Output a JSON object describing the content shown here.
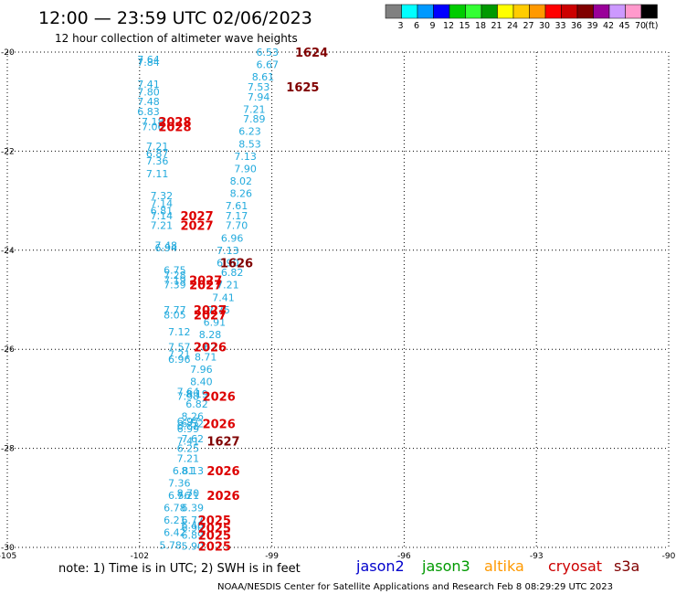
{
  "header": {
    "title": "12:00 — 23:59 UTC 02/06/2023",
    "subtitle": "12 hour collection of altimeter wave heights"
  },
  "legend": {
    "unit": "(ft)",
    "bins": [
      {
        "label": "3",
        "color": "#808080"
      },
      {
        "label": "6",
        "color": "#00ffff"
      },
      {
        "label": "9",
        "color": "#0099ff"
      },
      {
        "label": "12",
        "color": "#0000ff"
      },
      {
        "label": "15",
        "color": "#00cc00"
      },
      {
        "label": "18",
        "color": "#33ff33"
      },
      {
        "label": "21",
        "color": "#009900"
      },
      {
        "label": "24",
        "color": "#ffff00"
      },
      {
        "label": "27",
        "color": "#ffcc00"
      },
      {
        "label": "30",
        "color": "#ff9900"
      },
      {
        "label": "33",
        "color": "#ff0000"
      },
      {
        "label": "36",
        "color": "#cc0000"
      },
      {
        "label": "39",
        "color": "#800000"
      },
      {
        "label": "42",
        "color": "#990099"
      },
      {
        "label": "45",
        "color": "#cc99ff"
      },
      {
        "label": "70",
        "color": "#ff99cc"
      },
      {
        "label": "",
        "color": "#000000"
      }
    ]
  },
  "footer": {
    "note": "note:  1) Time is in UTC;  2) SWH is in feet",
    "satellites": [
      {
        "name": "jason2",
        "color": "#0000cc"
      },
      {
        "name": "jason3",
        "color": "#009900"
      },
      {
        "name": "altika",
        "color": "#ff9900"
      },
      {
        "name": "cryosat",
        "color": "#cc0000"
      },
      {
        "name": "s3a",
        "color": "#800000"
      }
    ],
    "credit": "NOAA/NESDIS Center for Satellite Applications and Research    Feb  8 08:29:29 UTC 2023"
  },
  "chart_data": {
    "type": "scatter",
    "xlim": [
      -105,
      -90
    ],
    "ylim": [
      -30,
      -20
    ],
    "xticks": [
      -105,
      -102,
      -99,
      -96,
      -93,
      -90
    ],
    "yticks": [
      -20,
      -22,
      -24,
      -26,
      -28,
      -30
    ],
    "grid": true,
    "swh_color": "#22aadd",
    "swh_points": [
      {
        "lon": -99.1,
        "lat": -20.0,
        "v": "6.53"
      },
      {
        "lon": -101.8,
        "lat": -20.15,
        "v": "7.64"
      },
      {
        "lon": -101.8,
        "lat": -20.2,
        "v": "7.84"
      },
      {
        "lon": -99.1,
        "lat": -20.25,
        "v": "6.67"
      },
      {
        "lon": -99.2,
        "lat": -20.5,
        "v": "8.61"
      },
      {
        "lon": -101.8,
        "lat": -20.65,
        "v": "7.41"
      },
      {
        "lon": -99.3,
        "lat": -20.7,
        "v": "7.53"
      },
      {
        "lon": -101.8,
        "lat": -20.8,
        "v": "7.80"
      },
      {
        "lon": -99.3,
        "lat": -20.9,
        "v": "7.94"
      },
      {
        "lon": -101.8,
        "lat": -21.0,
        "v": "7.48"
      },
      {
        "lon": -99.4,
        "lat": -21.15,
        "v": "7.21"
      },
      {
        "lon": -101.8,
        "lat": -21.2,
        "v": "6.83"
      },
      {
        "lon": -99.4,
        "lat": -21.35,
        "v": "7.89"
      },
      {
        "lon": -101.7,
        "lat": -21.4,
        "v": "7.18"
      },
      {
        "lon": -101.7,
        "lat": -21.5,
        "v": "7.06"
      },
      {
        "lon": -99.5,
        "lat": -21.6,
        "v": "6.23"
      },
      {
        "lon": -99.5,
        "lat": -21.85,
        "v": "8.53"
      },
      {
        "lon": -101.6,
        "lat": -21.9,
        "v": "7.21"
      },
      {
        "lon": -101.6,
        "lat": -22.05,
        "v": "6.87"
      },
      {
        "lon": -99.6,
        "lat": -22.1,
        "v": "7.13"
      },
      {
        "lon": -101.6,
        "lat": -22.2,
        "v": "7.36"
      },
      {
        "lon": -99.6,
        "lat": -22.35,
        "v": "7.90"
      },
      {
        "lon": -101.6,
        "lat": -22.45,
        "v": "7.11"
      },
      {
        "lon": -99.7,
        "lat": -22.6,
        "v": "8.02"
      },
      {
        "lon": -99.7,
        "lat": -22.85,
        "v": "8.26"
      },
      {
        "lon": -101.5,
        "lat": -22.9,
        "v": "7.32"
      },
      {
        "lon": -101.5,
        "lat": -23.05,
        "v": "7.14"
      },
      {
        "lon": -99.8,
        "lat": -23.1,
        "v": "7.61"
      },
      {
        "lon": -101.5,
        "lat": -23.2,
        "v": "6.81"
      },
      {
        "lon": -101.5,
        "lat": -23.3,
        "v": "7.14"
      },
      {
        "lon": -99.8,
        "lat": -23.3,
        "v": "7.17"
      },
      {
        "lon": -101.5,
        "lat": -23.5,
        "v": "7.21"
      },
      {
        "lon": -99.8,
        "lat": -23.5,
        "v": "7.70"
      },
      {
        "lon": -99.9,
        "lat": -23.75,
        "v": "6.96"
      },
      {
        "lon": -101.4,
        "lat": -23.9,
        "v": "7.48"
      },
      {
        "lon": -101.4,
        "lat": -23.95,
        "v": "6.94"
      },
      {
        "lon": -100.0,
        "lat": -24.0,
        "v": "7.13"
      },
      {
        "lon": -100.0,
        "lat": -24.25,
        "v": "6.90"
      },
      {
        "lon": -101.2,
        "lat": -24.4,
        "v": "6.75"
      },
      {
        "lon": -99.9,
        "lat": -24.45,
        "v": "6.82"
      },
      {
        "lon": -101.2,
        "lat": -24.5,
        "v": "7.28"
      },
      {
        "lon": -101.2,
        "lat": -24.6,
        "v": "7.19"
      },
      {
        "lon": -100.0,
        "lat": -24.7,
        "v": "7.21"
      },
      {
        "lon": -101.2,
        "lat": -24.7,
        "v": "7.39"
      },
      {
        "lon": -100.1,
        "lat": -24.95,
        "v": "7.41"
      },
      {
        "lon": -101.2,
        "lat": -25.2,
        "v": "7.77"
      },
      {
        "lon": -101.2,
        "lat": -25.3,
        "v": "8.05"
      },
      {
        "lon": -100.2,
        "lat": -25.2,
        "v": "7.75"
      },
      {
        "lon": -100.3,
        "lat": -25.45,
        "v": "6.91"
      },
      {
        "lon": -101.1,
        "lat": -25.65,
        "v": "7.12"
      },
      {
        "lon": -100.4,
        "lat": -25.7,
        "v": "8.28"
      },
      {
        "lon": -101.1,
        "lat": -25.95,
        "v": "7.57"
      },
      {
        "lon": -100.5,
        "lat": -25.95,
        "v": "7.62"
      },
      {
        "lon": -101.1,
        "lat": -26.1,
        "v": "7.21"
      },
      {
        "lon": -101.1,
        "lat": -26.2,
        "v": "6.96"
      },
      {
        "lon": -100.5,
        "lat": -26.15,
        "v": "8.71"
      },
      {
        "lon": -100.6,
        "lat": -26.4,
        "v": "7.96"
      },
      {
        "lon": -100.6,
        "lat": -26.65,
        "v": "8.40"
      },
      {
        "lon": -100.9,
        "lat": -26.85,
        "v": "7.64"
      },
      {
        "lon": -100.9,
        "lat": -26.95,
        "v": "7.98"
      },
      {
        "lon": -100.7,
        "lat": -26.9,
        "v": "8.19"
      },
      {
        "lon": -100.7,
        "lat": -27.1,
        "v": "6.82"
      },
      {
        "lon": -100.8,
        "lat": -27.35,
        "v": "8.26"
      },
      {
        "lon": -100.9,
        "lat": -27.45,
        "v": "6.97"
      },
      {
        "lon": -100.9,
        "lat": -27.55,
        "v": "6.82"
      },
      {
        "lon": -100.8,
        "lat": -27.5,
        "v": "6.52"
      },
      {
        "lon": -100.9,
        "lat": -27.6,
        "v": "6.99"
      },
      {
        "lon": -100.8,
        "lat": -27.8,
        "v": "7.62"
      },
      {
        "lon": -100.9,
        "lat": -27.85,
        "v": "7.41"
      },
      {
        "lon": -100.9,
        "lat": -28.0,
        "v": "6.25"
      },
      {
        "lon": -100.9,
        "lat": -28.2,
        "v": "7.21"
      },
      {
        "lon": -101.0,
        "lat": -28.45,
        "v": "6.81"
      },
      {
        "lon": -100.8,
        "lat": -28.45,
        "v": "8.13"
      },
      {
        "lon": -101.1,
        "lat": -28.7,
        "v": "7.36"
      },
      {
        "lon": -101.1,
        "lat": -28.95,
        "v": "6.56"
      },
      {
        "lon": -100.9,
        "lat": -28.9,
        "v": "8.70"
      },
      {
        "lon": -100.9,
        "lat": -28.95,
        "v": "7.21"
      },
      {
        "lon": -101.2,
        "lat": -29.2,
        "v": "6.78"
      },
      {
        "lon": -100.8,
        "lat": -29.2,
        "v": "6.39"
      },
      {
        "lon": -101.2,
        "lat": -29.45,
        "v": "6.21"
      },
      {
        "lon": -100.8,
        "lat": -29.45,
        "v": "6.77"
      },
      {
        "lon": -100.8,
        "lat": -29.55,
        "v": "6.40"
      },
      {
        "lon": -100.8,
        "lat": -29.6,
        "v": "6.90"
      },
      {
        "lon": -101.2,
        "lat": -29.7,
        "v": "6.42"
      },
      {
        "lon": -100.8,
        "lat": -29.75,
        "v": "6.89"
      },
      {
        "lon": -101.3,
        "lat": -29.95,
        "v": "5.78"
      },
      {
        "lon": -100.8,
        "lat": -29.97,
        "v": "5.90"
      }
    ],
    "time_labels": [
      {
        "lon": -98.1,
        "lat": -20.0,
        "text": "1624",
        "color": "#800000"
      },
      {
        "lon": -98.3,
        "lat": -20.7,
        "text": "1625",
        "color": "#800000"
      },
      {
        "lon": -101.2,
        "lat": -21.4,
        "text": "2028",
        "color": "#dd0000"
      },
      {
        "lon": -101.2,
        "lat": -21.5,
        "text": "2028",
        "color": "#dd0000"
      },
      {
        "lon": -100.7,
        "lat": -23.3,
        "text": "2027",
        "color": "#dd0000"
      },
      {
        "lon": -100.7,
        "lat": -23.5,
        "text": "2027",
        "color": "#dd0000"
      },
      {
        "lon": -99.8,
        "lat": -24.25,
        "text": "1626",
        "color": "#800000"
      },
      {
        "lon": -100.5,
        "lat": -24.6,
        "text": "2027",
        "color": "#dd0000"
      },
      {
        "lon": -100.5,
        "lat": -24.7,
        "text": "2027",
        "color": "#dd0000"
      },
      {
        "lon": -100.4,
        "lat": -25.2,
        "text": "2027",
        "color": "#dd0000"
      },
      {
        "lon": -100.4,
        "lat": -25.3,
        "text": "2027",
        "color": "#dd0000"
      },
      {
        "lon": -100.4,
        "lat": -25.95,
        "text": "2026",
        "color": "#dd0000"
      },
      {
        "lon": -100.2,
        "lat": -26.95,
        "text": "2026",
        "color": "#dd0000"
      },
      {
        "lon": -100.2,
        "lat": -27.5,
        "text": "2026",
        "color": "#dd0000"
      },
      {
        "lon": -100.1,
        "lat": -27.85,
        "text": "1627",
        "color": "#800000"
      },
      {
        "lon": -100.1,
        "lat": -28.45,
        "text": "2026",
        "color": "#dd0000"
      },
      {
        "lon": -100.1,
        "lat": -28.95,
        "text": "2026",
        "color": "#dd0000"
      },
      {
        "lon": -100.3,
        "lat": -29.45,
        "text": "2025",
        "color": "#dd0000"
      },
      {
        "lon": -100.3,
        "lat": -29.6,
        "text": "2025",
        "color": "#dd0000"
      },
      {
        "lon": -100.3,
        "lat": -29.75,
        "text": "2025",
        "color": "#dd0000"
      },
      {
        "lon": -100.3,
        "lat": -29.97,
        "text": "2025",
        "color": "#dd0000"
      }
    ]
  }
}
